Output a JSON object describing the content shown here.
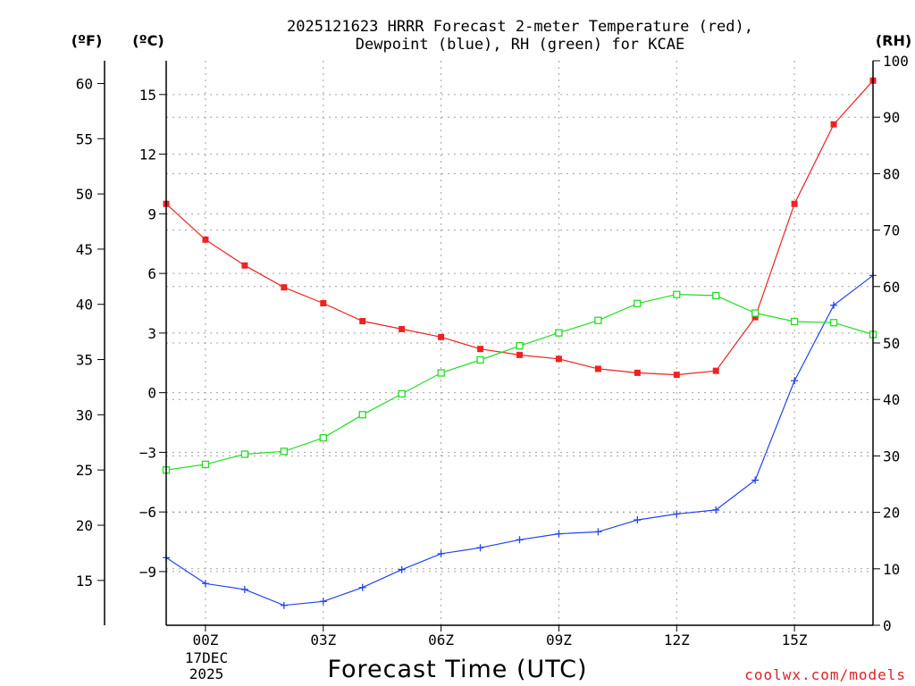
{
  "chart_data": {
    "type": "line",
    "title_line1": "2025121623 HRRR Forecast 2-meter Temperature (red),",
    "title_line2": "Dewpoint (blue), RH (green) for KCAE",
    "xlabel": "Forecast Time (UTC)",
    "credit": "coolwx.com/models",
    "left_unit_f": "(ºF)",
    "left_unit_c": "(ºC)",
    "right_unit": "(RH)",
    "x": [
      -1,
      0,
      1,
      2,
      3,
      4,
      5,
      6,
      7,
      8,
      9,
      10,
      11,
      12,
      13,
      14,
      15,
      16,
      17
    ],
    "xlim": [
      -1,
      17
    ],
    "x_ticks": [
      {
        "x": 0,
        "label": "00Z"
      },
      {
        "x": 3,
        "label": "03Z"
      },
      {
        "x": 6,
        "label": "06Z"
      },
      {
        "x": 9,
        "label": "09Z"
      },
      {
        "x": 12,
        "label": "12Z"
      },
      {
        "x": 15,
        "label": "15Z"
      }
    ],
    "date_line1": "17DEC",
    "date_line2": "2025",
    "ylim_c": [
      -11.7,
      16.7
    ],
    "ylim_rh": [
      0,
      100
    ],
    "c_ticks": [
      15,
      12,
      9,
      6,
      3,
      0,
      -3,
      -6,
      -9
    ],
    "c_tick_labels": [
      "15",
      "12",
      "9",
      "6",
      "3",
      "0",
      "−3",
      "−6",
      "−9"
    ],
    "f_ticks": [
      60,
      55,
      50,
      45,
      40,
      35,
      30,
      25,
      20,
      15
    ],
    "rh_ticks": [
      100,
      90,
      80,
      70,
      60,
      50,
      40,
      30,
      20,
      10,
      0
    ],
    "grid": true,
    "series": [
      {
        "name": "Temperature",
        "unit": "C",
        "color": "#ee2222",
        "marker": "filled-square",
        "values": [
          9.5,
          7.7,
          6.4,
          5.3,
          4.5,
          3.6,
          3.2,
          2.8,
          2.2,
          1.9,
          1.7,
          1.2,
          1.0,
          0.9,
          1.1,
          3.8,
          9.5,
          13.5,
          15.7
        ]
      },
      {
        "name": "Dewpoint",
        "unit": "C",
        "color": "#2244ee",
        "marker": "plus",
        "values": [
          -8.3,
          -9.6,
          -9.9,
          -10.7,
          -10.5,
          -9.8,
          -8.9,
          -8.1,
          -7.8,
          -7.4,
          -7.1,
          -7.0,
          -6.4,
          -6.1,
          -5.9,
          -4.4,
          0.6,
          4.4,
          5.9
        ]
      },
      {
        "name": "RH",
        "unit": "%",
        "color": "#22dd22",
        "marker": "open-square",
        "values": [
          27.5,
          28.5,
          30.3,
          30.8,
          33.2,
          37.3,
          41.0,
          44.7,
          47.0,
          49.5,
          51.8,
          54.0,
          57.0,
          58.6,
          58.4,
          55.3,
          53.8,
          53.6,
          51.5
        ]
      }
    ]
  }
}
